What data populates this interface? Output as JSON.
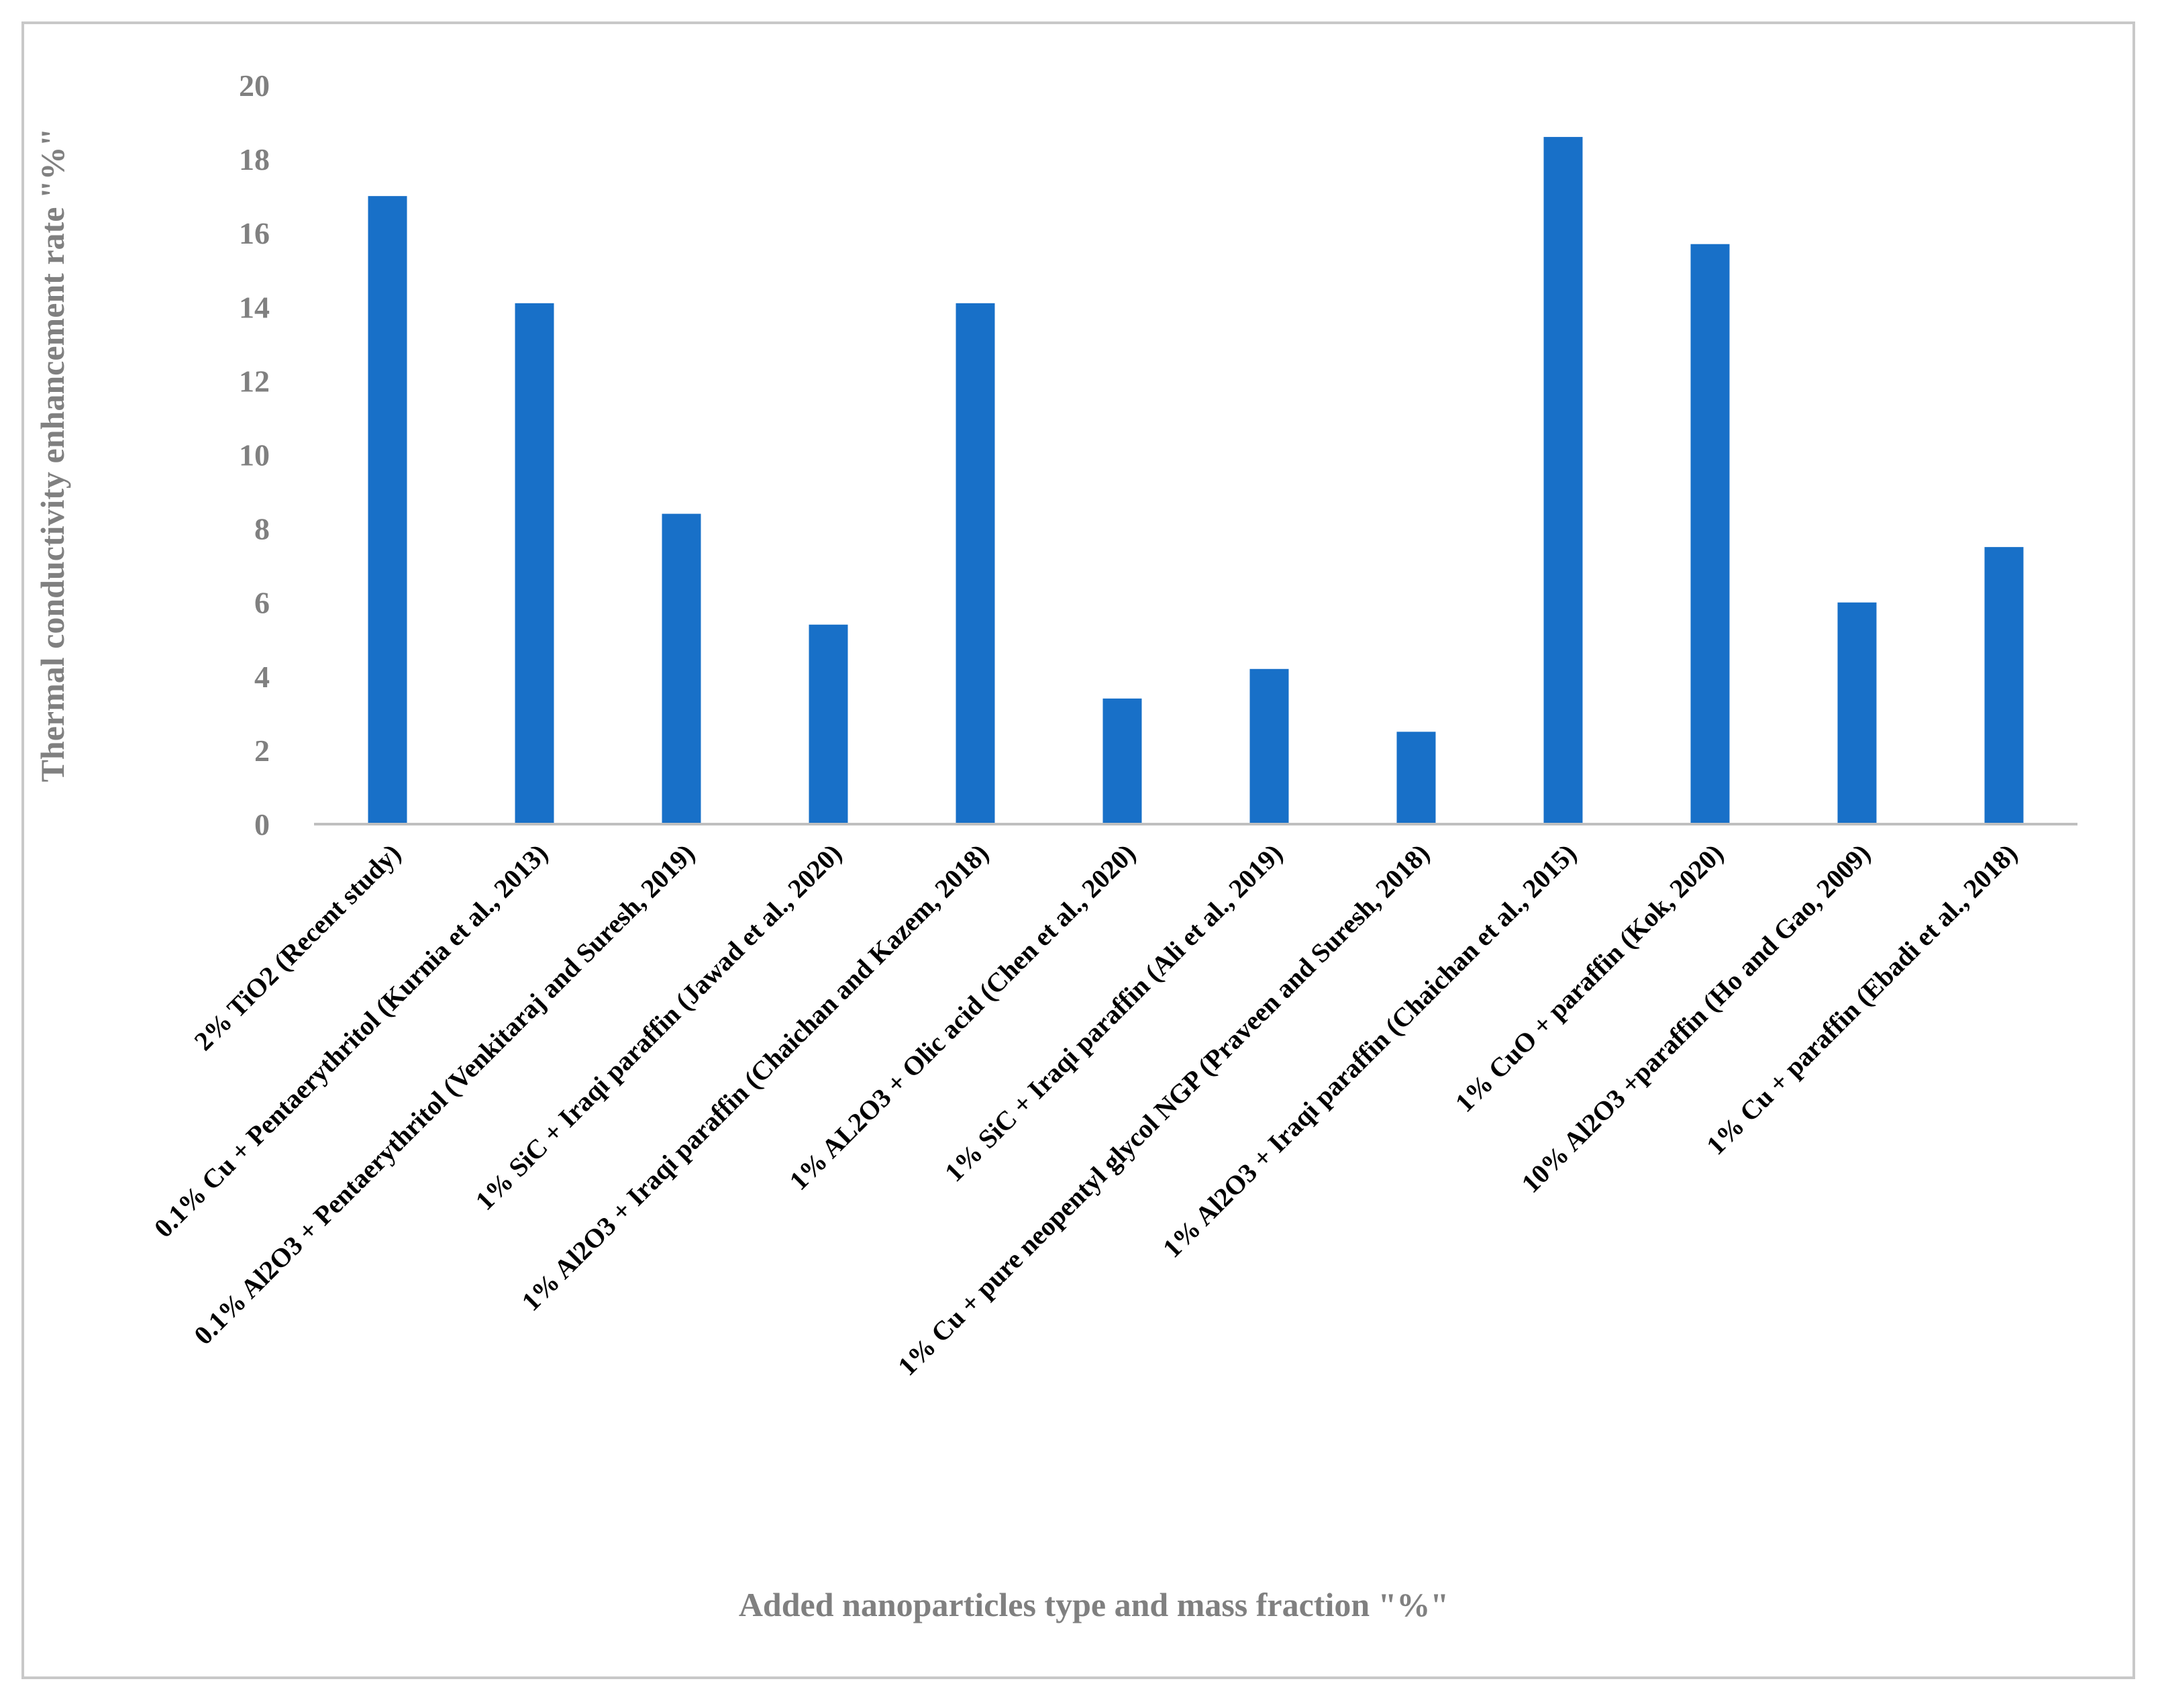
{
  "chart_data": {
    "type": "bar",
    "title": "",
    "xlabel": "Added nanoparticles type and mass fraction \"%\"",
    "ylabel": "Thermal conductivity enhancement rate \"%\"",
    "ylim": [
      0,
      20
    ],
    "yticks": [
      0,
      2,
      4,
      6,
      8,
      10,
      12,
      14,
      16,
      18,
      20
    ],
    "grid": false,
    "legend": "none",
    "bar_color": "#1870C8",
    "categories": [
      "2% TiO2 (Recent study)",
      "0.1% Cu + Pentaerythritol (Kurnia et al., 2013)",
      "0.1% Al2O3 + Pentaerythritol  (Venkitaraj and Suresh, 2019)",
      "1% SiC + Iraqi paraffin (Jawad et al., 2020)",
      "1% Al2O3 + Iraqi paraffin (Chaichan and Kazem, 2018)",
      "1% AL2O3 + Olic acid (Chen et al., 2020)",
      "1% SiC + Iraqi paraffin (Ali et al.,  2019)",
      "1% Cu + pure neopentyl glycol NGP (Praveen and Suresh, 2018)",
      "1% Al2O3 + Iraqi paraffin (Chaichan et al., 2015)",
      "1% CuO + paraffin (Kok, 2020)",
      "10% Al2O3 +paraffin (Ho and Gao, 2009)",
      "1% Cu + paraffin (Ebadi et al., 2018)"
    ],
    "values": [
      17,
      14.1,
      8.4,
      5.4,
      14.1,
      3.4,
      4.2,
      2.5,
      18.6,
      15.7,
      6,
      7.5
    ]
  }
}
